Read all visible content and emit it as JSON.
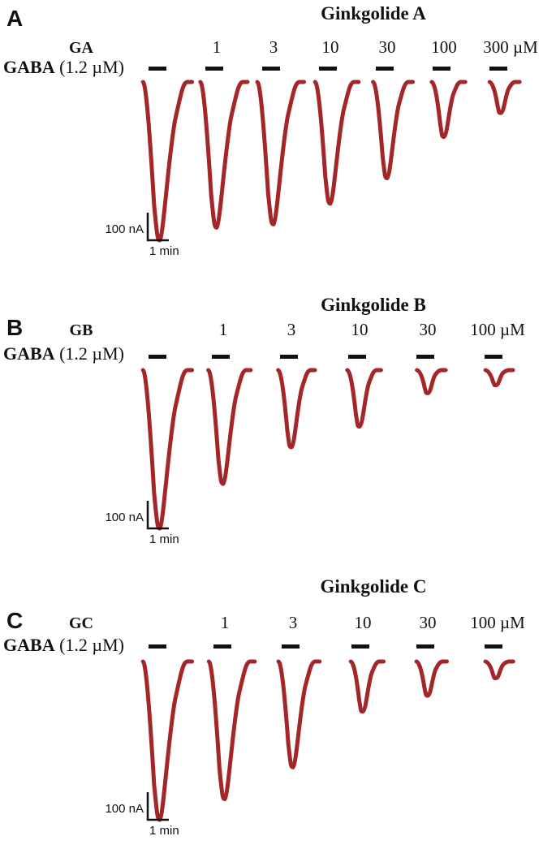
{
  "figure": {
    "panels": [
      {
        "label": "A",
        "title": "Ginkgolide A",
        "drug": "GA",
        "gaba_bold": "GABA",
        "gaba_paren": " (1.2 µM)",
        "conc_labels": [
          "1",
          "3",
          "10",
          "30",
          "100",
          "300 µM"
        ],
        "scale_y": "100 nA",
        "scale_x": "1 min"
      },
      {
        "label": "B",
        "title": "Ginkgolide B",
        "drug": "GB",
        "gaba_bold": "GABA",
        "gaba_paren": " (1.2 µM)",
        "conc_labels": [
          "1",
          "3",
          "10",
          "30",
          "100 µM"
        ],
        "scale_y": "100 nA",
        "scale_x": "1 min"
      },
      {
        "label": "C",
        "title": "Ginkgolide C",
        "drug": "GC",
        "gaba_bold": "GABA",
        "gaba_paren": " (1.2 µM)",
        "conc_labels": [
          "1",
          "3",
          "10",
          "30",
          "100 µM"
        ],
        "scale_y": "100 nA",
        "scale_x": "1 min"
      }
    ]
  },
  "chart_data": [
    {
      "type": "line",
      "title": "Ginkgolide A",
      "description": "GABA (1.2 µM) evoked inward current traces with increasing ginkgolide A concentration; downward deflection = inward current",
      "categories": [
        "GABA control",
        "1 µM",
        "3 µM",
        "10 µM",
        "30 µM",
        "100 µM",
        "300 µM"
      ],
      "concentrations_uM": [
        0,
        1,
        3,
        10,
        30,
        100,
        300
      ],
      "series": [
        {
          "name": "peak current (% of control)",
          "values": [
            100,
            92,
            90,
            77,
            61,
            35,
            20
          ]
        }
      ],
      "gaba_concentration": "1.2 µM",
      "scale_bar": {
        "vertical": "100 nA",
        "horizontal": "1 min"
      },
      "trace_color": "#a32628",
      "legend_position": "none",
      "grid": false
    },
    {
      "type": "line",
      "title": "Ginkgolide B",
      "description": "GABA (1.2 µM) evoked inward current traces with increasing ginkgolide B concentration",
      "categories": [
        "GABA control",
        "1 µM",
        "3 µM",
        "10 µM",
        "30 µM",
        "100 µM"
      ],
      "concentrations_uM": [
        0,
        1,
        3,
        10,
        30,
        100
      ],
      "series": [
        {
          "name": "peak current (% of control)",
          "values": [
            100,
            72,
            49,
            36,
            15,
            10
          ]
        }
      ],
      "gaba_concentration": "1.2 µM",
      "scale_bar": {
        "vertical": "100 nA",
        "horizontal": "1 min"
      },
      "trace_color": "#a32628",
      "legend_position": "none",
      "grid": false
    },
    {
      "type": "line",
      "title": "Ginkgolide C",
      "description": "GABA (1.2 µM) evoked inward current traces with increasing ginkgolide C concentration",
      "categories": [
        "GABA control",
        "1 µM",
        "3 µM",
        "10 µM",
        "30 µM",
        "100 µM"
      ],
      "concentrations_uM": [
        0,
        1,
        3,
        10,
        30,
        100
      ],
      "series": [
        {
          "name": "peak current (% of control)",
          "values": [
            100,
            87,
            67,
            32,
            22,
            11
          ]
        }
      ],
      "gaba_concentration": "1.2 µM",
      "scale_bar": {
        "vertical": "100 nA",
        "horizontal": "1 min"
      },
      "trace_color": "#a32628",
      "legend_position": "none",
      "grid": false
    }
  ]
}
